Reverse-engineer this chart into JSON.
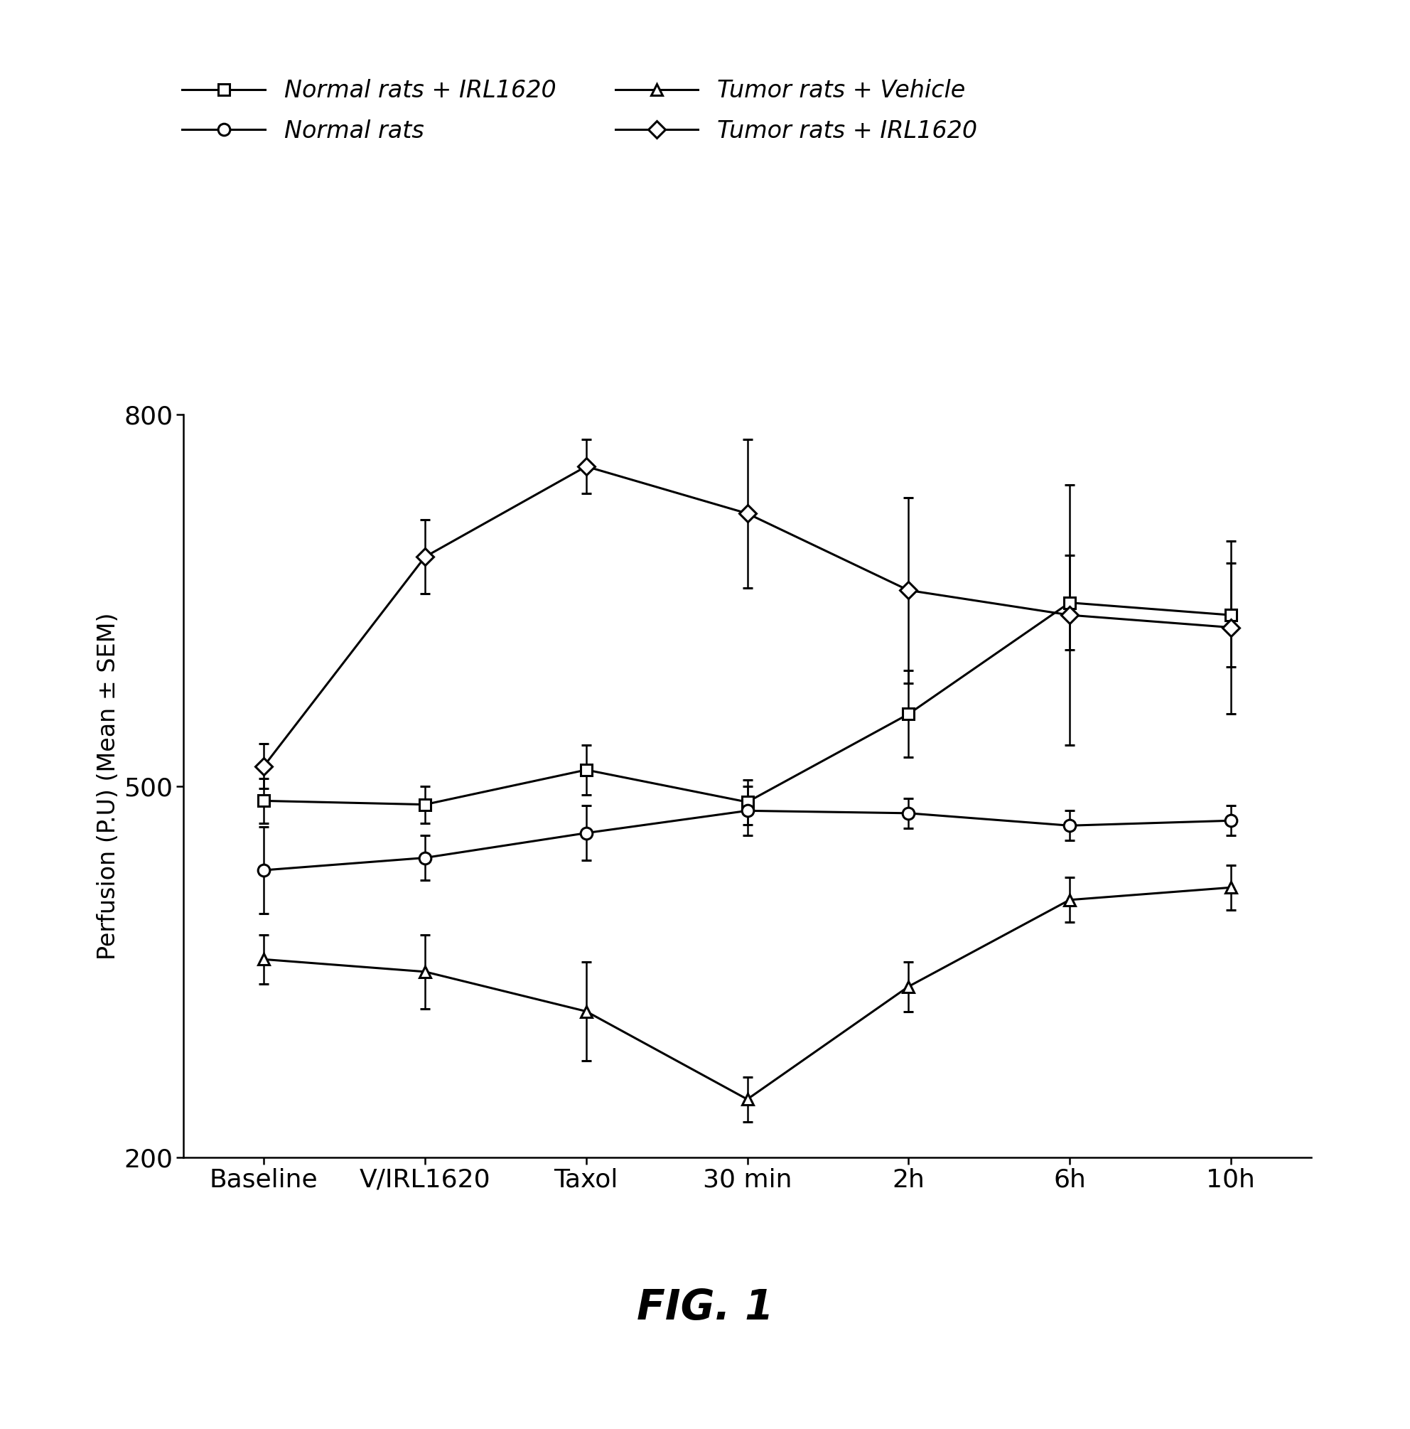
{
  "x_labels": [
    "Baseline",
    "V/IRL1620",
    "Taxol",
    "30 min",
    "2h",
    "6h",
    "10h"
  ],
  "x_positions": [
    0,
    1,
    2,
    3,
    4,
    5,
    6
  ],
  "series": [
    {
      "label": "Normal rats + IRL1620",
      "marker": "s",
      "y": [
        488,
        485,
        513,
        487,
        558,
        648,
        638
      ],
      "yerr": [
        18,
        15,
        20,
        18,
        35,
        38,
        42
      ]
    },
    {
      "label": "Normal rats",
      "marker": "o",
      "y": [
        432,
        442,
        462,
        480,
        478,
        468,
        472
      ],
      "yerr": [
        35,
        18,
        22,
        20,
        12,
        12,
        12
      ]
    },
    {
      "label": "Tumor rats + Vehicle",
      "marker": "^",
      "y": [
        360,
        350,
        318,
        247,
        338,
        408,
        418
      ],
      "yerr": [
        20,
        30,
        40,
        18,
        20,
        18,
        18
      ]
    },
    {
      "label": "Tumor rats + IRL1620",
      "marker": "D",
      "y": [
        516,
        685,
        758,
        720,
        658,
        638,
        628
      ],
      "yerr": [
        18,
        30,
        22,
        60,
        75,
        105,
        70
      ]
    }
  ],
  "ylim": [
    200,
    800
  ],
  "yticks": [
    200,
    500,
    800
  ],
  "ylabel": "Perfusion (P.U) (Mean ± SEM)",
  "fig_label": "FIG. 1",
  "line_color": "#000000",
  "line_width": 2.2,
  "marker_size": 12,
  "cap_size": 5,
  "elinewidth": 1.8,
  "capthick": 2.0,
  "legend_labels": [
    "Normal rats + IRL1620",
    "Normal rats",
    "Tumor rats + Vehicle",
    "Tumor rats + IRL1620"
  ],
  "legend_markers": [
    "s",
    "o",
    "^",
    "D"
  ],
  "tick_fontsize": 26,
  "ylabel_fontsize": 24,
  "legend_fontsize": 24,
  "figlabel_fontsize": 42
}
